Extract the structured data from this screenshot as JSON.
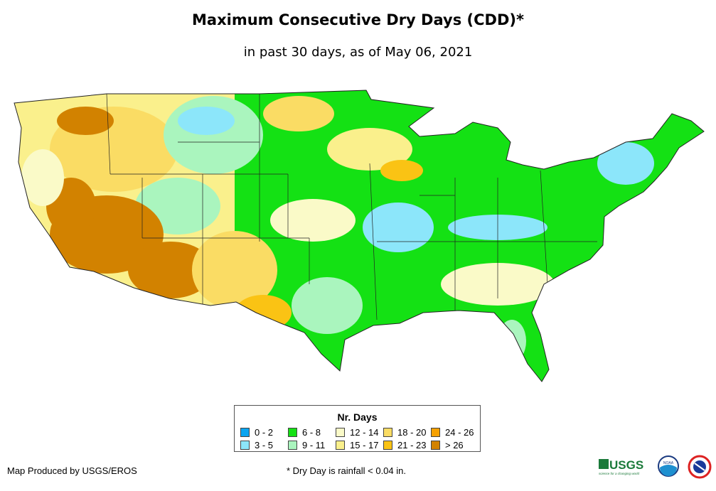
{
  "title": "Maximum Consecutive Dry Days (CDD)*",
  "subtitle": "in past 30 days, as of May 06, 2021",
  "legend": {
    "title": "Nr. Days",
    "items": [
      {
        "label": "0 - 2",
        "color": "#0aa5f0"
      },
      {
        "label": "3 - 5",
        "color": "#8ce6fa"
      },
      {
        "label": "6 - 8",
        "color": "#14e114"
      },
      {
        "label": "9 - 11",
        "color": "#aaf5be"
      },
      {
        "label": "12 - 14",
        "color": "#fafac8"
      },
      {
        "label": "15 - 17",
        "color": "#faf08c"
      },
      {
        "label": "18 - 20",
        "color": "#fadc64"
      },
      {
        "label": "21 - 23",
        "color": "#fac314"
      },
      {
        "label": "24 - 26",
        "color": "#f5a000"
      },
      {
        "label": "> 26",
        "color": "#d28200"
      }
    ]
  },
  "footer": {
    "credit": "Map Produced by USGS/EROS",
    "note": "* Dry Day is rainfall < 0.04 in."
  },
  "logos": {
    "usgs": "USGS",
    "usgs_tagline": "science for a changing world",
    "noaa": "NOAA",
    "nws": "National Weather Service"
  }
}
